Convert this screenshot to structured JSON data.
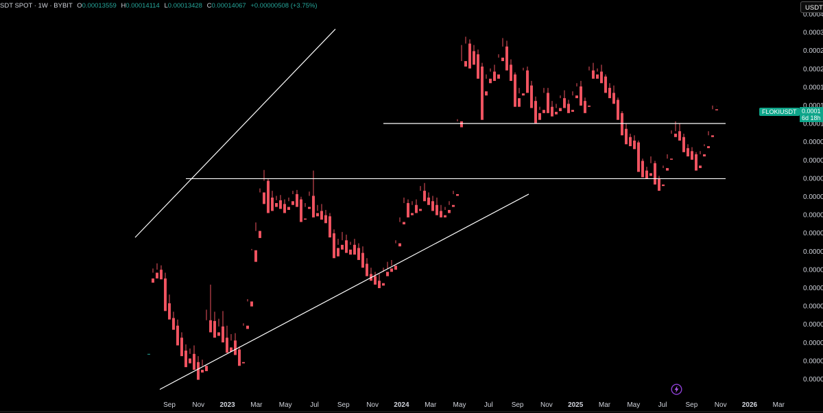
{
  "header": {
    "symbol": "SDT SPOT · 1W · BYBIT",
    "open_label": "O",
    "open": "0.00013559",
    "high_label": "H",
    "high": "0.00014114",
    "low_label": "L",
    "low": "0.00013428",
    "close_label": "C",
    "close": "0.00014067",
    "change": "+0.00000508 (+3.75%)"
  },
  "unit_button": "USDT",
  "price_tag": {
    "symbol": "FLOKIUSDT",
    "price": "0.0001",
    "countdown": "6d 18h"
  },
  "colors": {
    "up": "#26a69a",
    "down": "#ef5360",
    "background": "#000000",
    "lines": "#ffffff",
    "tag": "#0ea58a"
  },
  "chart_data": {
    "type": "candlestick",
    "interval": "1W",
    "x_axis_labels": [
      "Sep",
      "Nov",
      "2023",
      "Mar",
      "May",
      "Jul",
      "Sep",
      "Nov",
      "2024",
      "Mar",
      "May",
      "Jul",
      "Sep",
      "Nov",
      "2025",
      "Mar",
      "May",
      "Jul",
      "Sep",
      "Nov",
      "2026",
      "Mar"
    ],
    "y_axis_labels": [
      "0.0004",
      "0.0003",
      "0.0002",
      "0.0002",
      "0.0001",
      "0.0001",
      "0.0001",
      "0.0000",
      "0.0000",
      "0.0000",
      "0.0000",
      "0.0000",
      "0.0000",
      "0.0000",
      "0.0000",
      "0.0000",
      "0.0000",
      "0.0000",
      "0.0000",
      "0.0000",
      "0.0000"
    ],
    "grid": false,
    "candle_series": [
      [
        7.6e-06,
        1.85e-05,
        1.85e-05,
        7.6e-06
      ],
      [
        1.85e-05,
        2.08e-05,
        1.98e-05,
        1.76e-05
      ],
      [
        1.98e-05,
        2.21e-05,
        2.05e-05,
        1.85e-05
      ],
      [
        2.05e-05,
        2.16e-05,
        1.85e-05,
        1.83e-05
      ],
      [
        1.85e-05,
        1.98e-05,
        1.38e-05,
        1.26e-05
      ],
      [
        1.38e-05,
        1.53e-05,
        1.16e-05,
        1.14e-05
      ],
      [
        1.16e-05,
        1.25e-05,
        1.06e-05,
        1.01e-05
      ],
      [
        1.06e-05,
        1.14e-05,
        9.2e-06,
        8.4e-06
      ],
      [
        9.2e-06,
        9.8e-06,
        7.9e-06,
        7.4e-06
      ],
      [
        7.9e-06,
        8.5e-06,
        7.2e-06,
        6.5e-06
      ],
      [
        7.2e-06,
        8.1e-06,
        7.6e-06,
        6.8e-06
      ],
      [
        7.6e-06,
        8.4e-06,
        6.9e-06,
        6.3e-06
      ],
      [
        6.9e-06,
        7.4e-06,
        6.3e-06,
        5.6e-06
      ],
      [
        6.3e-06,
        7.1e-06,
        6.6e-06,
        6.1e-06
      ],
      [
        6.6e-06,
        1.28e-05,
        1.13e-05,
        6.2e-06
      ],
      [
        1.13e-05,
        1.72e-05,
        1.12e-05,
        9.8e-06
      ],
      [
        1.12e-05,
        1.25e-05,
        9.8e-06,
        9.2e-06
      ],
      [
        9.8e-06,
        1.15e-05,
        1.05e-05,
        9.4e-06
      ],
      [
        1.05e-05,
        1.26e-05,
        9.2e-06,
        8.7e-06
      ],
      [
        9.2e-06,
        1.06e-05,
        8.2e-06,
        7.7e-06
      ],
      [
        8.2e-06,
        9.6e-06,
        8.9e-06,
        7.8e-06
      ],
      [
        8.9e-06,
        9.7e-06,
        8e-06,
        7.5e-06
      ],
      [
        8e-06,
        8.3e-06,
        6.9e-06,
        6.6e-06
      ],
      [
        6.9e-06,
        1.09e-05,
        1.06e-05,
        6.8e-06
      ],
      [
        1.06e-05,
        1.45e-05,
        1.41e-05,
        1.02e-05
      ],
      [
        1.41e-05,
        2.62e-05,
        2.58e-05,
        1.33e-05
      ],
      [
        2.58e-05,
        3.58e-05,
        3.24e-05,
        2.25e-05
      ],
      [
        3.24e-05,
        5.35e-05,
        5.1e-05,
        2.98e-05
      ],
      [
        5.1e-05,
        6.65e-05,
        5.85e-05,
        4.45e-05
      ],
      [
        5.85e-05,
        6e-05,
        4.8e-05,
        4e-05
      ],
      [
        4.8e-05,
        5.2e-05,
        4.5e-05,
        4.1e-05
      ],
      [
        4.5e-05,
        4.9e-05,
        4.65e-05,
        4.3e-05
      ],
      [
        4.65e-05,
        4.95e-05,
        4.45e-05,
        4.2e-05
      ],
      [
        4.45e-05,
        4.7e-05,
        4.3e-05,
        4e-05
      ],
      [
        4.3e-05,
        4.8e-05,
        4.6e-05,
        4.15e-05
      ],
      [
        4.6e-05,
        5.2e-05,
        5e-05,
        4.4e-05
      ],
      [
        5e-05,
        5.25e-05,
        4.7e-05,
        4.3e-05
      ],
      [
        4.7e-05,
        4.85e-05,
        3.75e-05,
        3.6e-05
      ],
      [
        3.75e-05,
        4.5e-05,
        4.3e-05,
        3.7e-05
      ],
      [
        4.3e-05,
        5.15e-05,
        4.9e-05,
        4.2e-05
      ],
      [
        4.9e-05,
        6.6e-05,
        4e-05,
        3.8e-05
      ],
      [
        4e-05,
        4.4e-05,
        4.1e-05,
        3.85e-05
      ],
      [
        4.1e-05,
        4.45e-05,
        3.9e-05,
        3.7e-05
      ],
      [
        3.9e-05,
        4.15e-05,
        3.85e-05,
        3.55e-05
      ],
      [
        3.85e-05,
        4e-05,
        3.15e-05,
        3e-05
      ],
      [
        3.15e-05,
        3.3e-05,
        2.65e-05,
        2.35e-05
      ],
      [
        2.65e-05,
        2.95e-05,
        2.75e-05,
        2.4e-05
      ],
      [
        2.75e-05,
        3.2e-05,
        2.9e-05,
        2.6e-05
      ],
      [
        2.9e-05,
        3.1e-05,
        2.6e-05,
        2.5e-05
      ],
      [
        2.6e-05,
        2.85e-05,
        2.75e-05,
        2.45e-05
      ],
      [
        2.75e-05,
        2.95e-05,
        2.65e-05,
        2.45e-05
      ],
      [
        2.65e-05,
        2.8e-05,
        2.5e-05,
        2.3e-05
      ],
      [
        2.5e-05,
        2.7e-05,
        2.2e-05,
        2.1e-05
      ],
      [
        2.2e-05,
        2.35e-05,
        1.95e-05,
        1.9e-05
      ],
      [
        1.95e-05,
        2.1e-05,
        1.9e-05,
        1.8e-05
      ],
      [
        1.9e-05,
        2e-05,
        1.8e-05,
        1.72e-05
      ],
      [
        1.8e-05,
        1.95e-05,
        1.75e-05,
        1.65e-05
      ],
      [
        1.75e-05,
        2.1e-05,
        2e-05,
        1.7e-05
      ],
      [
        2e-05,
        2.25e-05,
        2.08e-05,
        1.9e-05
      ],
      [
        2.08e-05,
        2.3e-05,
        2.15e-05,
        2e-05
      ],
      [
        2.15e-05,
        2.9e-05,
        2.8e-05,
        2.05e-05
      ],
      [
        2.8e-05,
        3.8e-05,
        3.6e-05,
        2.7e-05
      ],
      [
        3.6e-05,
        4.8e-05,
        4.5e-05,
        3.5e-05
      ],
      [
        4.5e-05,
        4.7e-05,
        4e-05,
        3.8e-05
      ],
      [
        4e-05,
        4.6e-05,
        4.4e-05,
        3.9e-05
      ],
      [
        4.4e-05,
        4.7e-05,
        4.2e-05,
        4e-05
      ],
      [
        4.2e-05,
        5.5e-05,
        5.2e-05,
        4.1e-05
      ],
      [
        5.2e-05,
        5.7e-05,
        4.8e-05,
        4.6e-05
      ],
      [
        4.8e-05,
        5.1e-05,
        4.6e-05,
        4.4e-05
      ],
      [
        4.6e-05,
        4.9e-05,
        4.4e-05,
        4.1e-05
      ],
      [
        4.4e-05,
        4.8e-05,
        4.1e-05,
        3.9e-05
      ],
      [
        4.1e-05,
        4.4e-05,
        3.9e-05,
        3.8e-05
      ],
      [
        3.9e-05,
        4.3e-05,
        4.15e-05,
        3.8e-05
      ],
      [
        4.15e-05,
        4.6e-05,
        4.4e-05,
        4e-05
      ],
      [
        4.4e-05,
        5.2e-05,
        5e-05,
        4.3e-05
      ],
      [
        5e-05,
        0.000121,
        0.000118,
        4.9e-05
      ],
      [
        0.000118,
        0.00029,
        0.00024,
        0.00011
      ],
      [
        0.00024,
        0.00032,
        0.000295,
        0.000225
      ],
      [
        0.000295,
        0.00031,
        0.00027,
        0.00022
      ],
      [
        0.00027,
        0.00029,
        0.00026,
        0.00023
      ],
      [
        0.00026,
        0.000275,
        0.000225,
        0.000195
      ],
      [
        0.000225,
        0.000235,
        0.000168,
        0.00012
      ],
      [
        0.000168,
        0.000205,
        0.000195,
        0.00016
      ],
      [
        0.000195,
        0.00022,
        0.000212,
        0.000185
      ],
      [
        0.000212,
        0.00023,
        0.000205,
        0.00019
      ],
      [
        0.000205,
        0.00026,
        0.00025,
        0.000195
      ],
      [
        0.00025,
        0.000315,
        0.000285,
        0.00024
      ],
      [
        0.000285,
        0.000305,
        0.00023,
        0.000215
      ],
      [
        0.00023,
        0.000245,
        0.000205,
        0.00019
      ],
      [
        0.000205,
        0.00021,
        0.000155,
        0.00014
      ],
      [
        0.000155,
        0.000175,
        0.000164,
        0.00014
      ],
      [
        0.000164,
        0.000222,
        0.000215,
        0.00016
      ],
      [
        0.000215,
        0.000225,
        0.00018,
        0.000165
      ],
      [
        0.00018,
        0.00019,
        0.00015,
        0.000138
      ],
      [
        0.00015,
        0.000158,
        0.00013,
        0.000115
      ],
      [
        0.00013,
        0.00014,
        0.000135,
        0.00012
      ],
      [
        0.000135,
        0.000175,
        0.000165,
        0.00013
      ],
      [
        0.000165,
        0.000175,
        0.00014,
        0.00013
      ],
      [
        0.00014,
        0.00015,
        0.000132,
        0.000125
      ],
      [
        0.000132,
        0.000145,
        0.000138,
        0.000128
      ],
      [
        0.000138,
        0.00016,
        0.000155,
        0.000133
      ],
      [
        0.000155,
        0.00017,
        0.000145,
        0.000138
      ],
      [
        0.000145,
        0.000152,
        0.000135,
        0.00013
      ],
      [
        0.000135,
        0.000168,
        0.00016,
        0.000132
      ],
      [
        0.00016,
        0.000185,
        0.000178,
        0.000155
      ],
      [
        0.000178,
        0.00019,
        0.00015,
        0.000142
      ],
      [
        0.00015,
        0.000156,
        0.000142,
        0.00013
      ],
      [
        0.000142,
        0.000225,
        0.000215,
        0.00014
      ],
      [
        0.000215,
        0.000235,
        0.000205,
        0.000195
      ],
      [
        0.000205,
        0.00022,
        0.000212,
        0.000195
      ],
      [
        0.000212,
        0.00023,
        0.0002,
        0.000185
      ],
      [
        0.0002,
        0.000205,
        0.000175,
        0.000165
      ],
      [
        0.000175,
        0.000185,
        0.000165,
        0.000155
      ],
      [
        0.000165,
        0.00018,
        0.000152,
        0.000145
      ],
      [
        0.000152,
        0.000156,
        0.00013,
        0.00012
      ],
      [
        0.00013,
        0.000133,
        0.000108,
        0.0001
      ],
      [
        0.000108,
        0.000115,
        9.8e-05,
        9e-05
      ],
      [
        9.8e-05,
        0.000102,
        9.4e-05,
        8.8e-05
      ],
      [
        9.4e-05,
        0.0001,
        9.2e-05,
        8.5e-05
      ],
      [
        9.2e-05,
        9.4e-05,
        7.4e-05,
        6.5e-05
      ],
      [
        7.4e-05,
        7.6e-05,
        6.6e-05,
        6.1e-05
      ],
      [
        6.6e-05,
        6.9e-05,
        6.4e-05,
        6e-05
      ],
      [
        6.4e-05,
        7.8e-05,
        7.2e-05,
        6.2e-05
      ],
      [
        7.2e-05,
        7.4e-05,
        6e-05,
        5.6e-05
      ],
      [
        6e-05,
        6.2e-05,
        5.6e-05,
        5.2e-05
      ],
      [
        5.6e-05,
        7e-05,
        6.8e-05,
        5.5e-05
      ],
      [
        6.8e-05,
        8e-05,
        7.6e-05,
        6.6e-05
      ],
      [
        7.6e-05,
        0.000106,
        0.000102,
        7.5e-05
      ],
      [
        0.000102,
        0.000118,
        0.000105,
        9.8e-05
      ],
      [
        0.000105,
        0.000115,
        9.8e-05,
        9.4e-05
      ],
      [
        9.8e-05,
        0.000102,
        8.6e-05,
        8.2e-05
      ],
      [
        8.6e-05,
        9e-05,
        8.3e-05,
        7.8e-05
      ],
      [
        8.3e-05,
        8.7e-05,
        8e-05,
        7.5e-05
      ],
      [
        8e-05,
        8.2e-05,
        7e-05,
        6.6e-05
      ],
      [
        7e-05,
        8.3e-05,
        8e-05,
        6.8e-05
      ],
      [
        8e-05,
        9e-05,
        8.8e-05,
        7.8e-05
      ],
      [
        8.8e-05,
        0.000105,
        0.0001,
        8.6e-05
      ],
      [
        0.0001,
        0.000142,
        0.000136,
        9.8e-05
      ],
      [
        0.000136,
        0.0001411,
        0.0001407,
        0.0001343
      ]
    ],
    "annotations": [
      {
        "type": "trendline",
        "from": [
          0,
          3e-05
        ],
        "to": [
          42,
          0.00035
        ]
      },
      {
        "type": "trendline",
        "from": [
          6,
          5e-06
        ],
        "to": [
          89,
          5e-05
        ]
      },
      {
        "type": "horizontal",
        "from": 8,
        "to": 125,
        "value": 6e-05
      },
      {
        "type": "horizontal",
        "from": 56,
        "to": 125,
        "value": 0.000115
      }
    ]
  }
}
